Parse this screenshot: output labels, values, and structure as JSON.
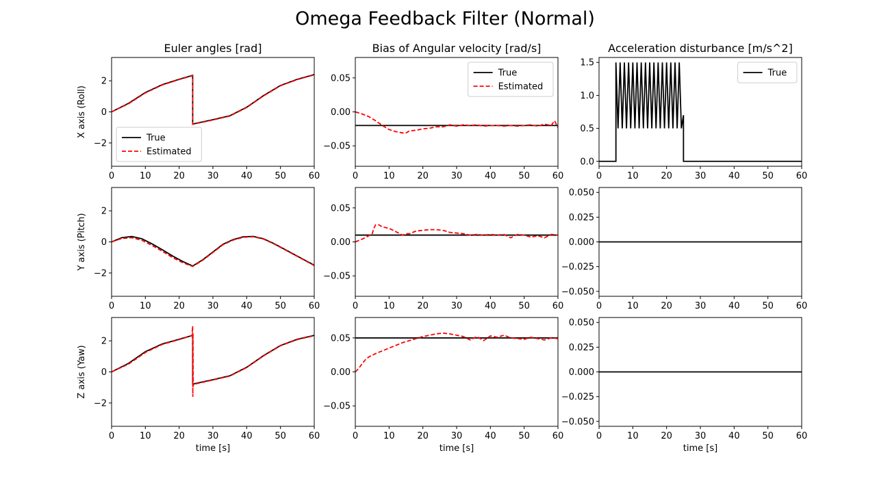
{
  "figure": {
    "title": "Omega Feedback Filter (Normal)"
  },
  "chart_data": [
    {
      "id": "euler-roll",
      "type": "line",
      "row": 0,
      "col": 0,
      "title": "Euler angles [rad]",
      "ylabel": "X axis (Roll)",
      "xlabel": "",
      "xlim": [
        0,
        60
      ],
      "ylim": [
        -3.5,
        3.5
      ],
      "xticks": [
        0,
        10,
        20,
        30,
        40,
        50,
        60
      ],
      "yticks": [
        -2,
        0,
        2
      ],
      "tick_format": "int",
      "legend": {
        "loc": "lower-left",
        "entries": [
          "True",
          "Estimated"
        ]
      },
      "series": [
        {
          "name": "True",
          "color": "#000000",
          "style": "solid",
          "x": [
            0,
            5,
            10,
            15,
            20,
            24,
            24.01,
            30,
            35,
            40,
            45,
            50,
            55,
            60
          ],
          "y": [
            0,
            0.55,
            1.25,
            1.75,
            2.1,
            2.35,
            -0.78,
            -0.5,
            -0.25,
            0.3,
            1.05,
            1.7,
            2.1,
            2.4
          ]
        },
        {
          "name": "Estimated",
          "color": "#ff0000",
          "style": "dashed",
          "x": [
            0,
            5,
            10,
            15,
            20,
            24,
            24.01,
            30,
            35,
            40,
            45,
            50,
            55,
            60
          ],
          "y": [
            0,
            0.52,
            1.22,
            1.73,
            2.08,
            2.33,
            -0.8,
            -0.52,
            -0.27,
            0.28,
            1.03,
            1.68,
            2.08,
            2.38
          ]
        }
      ]
    },
    {
      "id": "bias-x",
      "type": "line",
      "row": 0,
      "col": 1,
      "title": "Bias of Angular velocity [rad/s]",
      "ylabel": "",
      "xlabel": "",
      "xlim": [
        0,
        60
      ],
      "ylim": [
        -0.08,
        0.08
      ],
      "xticks": [
        0,
        10,
        20,
        30,
        40,
        50,
        60
      ],
      "yticks": [
        -0.05,
        0.0,
        0.05
      ],
      "tick_format": "2f",
      "legend": {
        "loc": "top-right",
        "entries": [
          "True",
          "Estimated"
        ]
      },
      "series": [
        {
          "name": "True",
          "color": "#000000",
          "style": "solid",
          "x": [
            0,
            60
          ],
          "y": [
            -0.02,
            -0.02
          ]
        },
        {
          "name": "Estimated",
          "color": "#ff0000",
          "style": "dashed",
          "x": [
            0,
            2,
            4,
            6,
            8,
            10,
            12,
            14,
            15,
            16,
            18,
            20,
            22,
            24,
            26,
            28,
            30,
            32,
            34,
            36,
            38,
            40,
            42,
            44,
            46,
            48,
            50,
            52,
            54,
            56,
            58,
            59,
            60
          ],
          "y": [
            0,
            -0.003,
            -0.007,
            -0.013,
            -0.02,
            -0.026,
            -0.029,
            -0.031,
            -0.031,
            -0.028,
            -0.027,
            -0.025,
            -0.024,
            -0.022,
            -0.022,
            -0.019,
            -0.021,
            -0.019,
            -0.02,
            -0.019,
            -0.021,
            -0.02,
            -0.02,
            -0.021,
            -0.02,
            -0.021,
            -0.02,
            -0.019,
            -0.021,
            -0.018,
            -0.02,
            -0.013,
            -0.023
          ]
        }
      ]
    },
    {
      "id": "accel-x",
      "type": "line",
      "row": 0,
      "col": 2,
      "title": "Acceleration disturbance [m/s^2]",
      "ylabel": "",
      "xlabel": "",
      "xlim": [
        0,
        60
      ],
      "ylim": [
        -0.075,
        1.575
      ],
      "xticks": [
        0,
        10,
        20,
        30,
        40,
        50,
        60
      ],
      "yticks": [
        0.0,
        0.5,
        1.0,
        1.5
      ],
      "tick_format": "1f",
      "legend": {
        "loc": "top-right",
        "entries": [
          "True"
        ]
      },
      "series": [
        {
          "name": "True",
          "color": "#000000",
          "style": "solid",
          "oscillation": {
            "start": 5,
            "end": 25,
            "min": 0.5,
            "max": 1.5,
            "cycles": 16,
            "end_value": 0.7
          },
          "baseline": 0
        }
      ]
    },
    {
      "id": "euler-pitch",
      "type": "line",
      "row": 1,
      "col": 0,
      "title": "",
      "ylabel": "Y axis (Pitch)",
      "xlabel": "",
      "xlim": [
        0,
        60
      ],
      "ylim": [
        -3.5,
        3.5
      ],
      "xticks": [
        0,
        10,
        20,
        30,
        40,
        50,
        60
      ],
      "yticks": [
        -2,
        0,
        2
      ],
      "tick_format": "int",
      "legend": null,
      "series": [
        {
          "name": "True",
          "color": "#000000",
          "style": "solid",
          "x": [
            0,
            3,
            6,
            9,
            12,
            15,
            18,
            21,
            24,
            27,
            30,
            33,
            36,
            39,
            42,
            45,
            48,
            51,
            54,
            57,
            60
          ],
          "y": [
            0,
            0.27,
            0.35,
            0.2,
            -0.13,
            -0.5,
            -0.9,
            -1.25,
            -1.55,
            -1.15,
            -0.65,
            -0.15,
            0.15,
            0.33,
            0.35,
            0.2,
            -0.1,
            -0.45,
            -0.8,
            -1.15,
            -1.5
          ]
        },
        {
          "name": "Estimated",
          "color": "#ff0000",
          "style": "dashed",
          "x": [
            0,
            3,
            6,
            9,
            12,
            15,
            18,
            21,
            24,
            27,
            30,
            33,
            36,
            39,
            42,
            45,
            48,
            51,
            54,
            57,
            60
          ],
          "y": [
            0,
            0.22,
            0.27,
            0.1,
            -0.23,
            -0.6,
            -1.0,
            -1.33,
            -1.58,
            -1.18,
            -0.68,
            -0.18,
            0.12,
            0.3,
            0.33,
            0.18,
            -0.12,
            -0.47,
            -0.82,
            -1.17,
            -1.52
          ]
        }
      ]
    },
    {
      "id": "bias-y",
      "type": "line",
      "row": 1,
      "col": 1,
      "title": "",
      "ylabel": "",
      "xlabel": "",
      "xlim": [
        0,
        60
      ],
      "ylim": [
        -0.08,
        0.08
      ],
      "xticks": [
        0,
        10,
        20,
        30,
        40,
        50,
        60
      ],
      "yticks": [
        -0.05,
        0.0,
        0.05
      ],
      "tick_format": "2f",
      "legend": null,
      "series": [
        {
          "name": "True",
          "color": "#000000",
          "style": "solid",
          "x": [
            0,
            60
          ],
          "y": [
            0.01,
            0.01
          ]
        },
        {
          "name": "Estimated",
          "color": "#ff0000",
          "style": "dashed",
          "x": [
            0,
            2,
            4,
            5,
            5.5,
            6,
            7,
            8,
            10,
            12,
            14,
            15,
            16,
            18,
            20,
            22,
            24,
            26,
            28,
            30,
            32,
            34,
            36,
            38,
            40,
            42,
            44,
            46,
            48,
            50,
            52,
            54,
            56,
            58,
            60
          ],
          "y": [
            0,
            0.004,
            0.009,
            0.012,
            0.02,
            0.025,
            0.025,
            0.022,
            0.02,
            0.015,
            0.01,
            0.012,
            0.012,
            0.016,
            0.017,
            0.018,
            0.018,
            0.017,
            0.014,
            0.013,
            0.012,
            0.01,
            0.011,
            0.01,
            0.011,
            0.01,
            0.011,
            0.006,
            0.011,
            0.01,
            0.007,
            0.009,
            0.006,
            0.011,
            0.01
          ]
        }
      ]
    },
    {
      "id": "accel-y",
      "type": "line",
      "row": 1,
      "col": 2,
      "title": "",
      "ylabel": "",
      "xlabel": "",
      "xlim": [
        0,
        60
      ],
      "ylim": [
        -0.055,
        0.055
      ],
      "xticks": [
        0,
        10,
        20,
        30,
        40,
        50,
        60
      ],
      "yticks": [
        -0.05,
        -0.025,
        0.0,
        0.025,
        0.05
      ],
      "tick_format": "3f",
      "legend": null,
      "series": [
        {
          "name": "True",
          "color": "#000000",
          "style": "solid",
          "x": [
            0,
            60
          ],
          "y": [
            0,
            0
          ]
        }
      ]
    },
    {
      "id": "euler-yaw",
      "type": "line",
      "row": 2,
      "col": 0,
      "title": "",
      "ylabel": "Z axis (Yaw)",
      "xlabel": "time [s]",
      "xlim": [
        0,
        60
      ],
      "ylim": [
        -3.5,
        3.5
      ],
      "xticks": [
        0,
        10,
        20,
        30,
        40,
        50,
        60
      ],
      "yticks": [
        -2,
        0,
        2
      ],
      "tick_format": "int",
      "legend": null,
      "series": [
        {
          "name": "True",
          "color": "#000000",
          "style": "solid",
          "x": [
            0,
            5,
            10,
            15,
            20,
            24,
            24.01,
            30,
            35,
            40,
            45,
            50,
            55,
            60
          ],
          "y": [
            0,
            0.55,
            1.3,
            1.8,
            2.1,
            2.35,
            -0.78,
            -0.5,
            -0.25,
            0.3,
            1.05,
            1.7,
            2.1,
            2.35
          ]
        },
        {
          "name": "Estimated",
          "color": "#ff0000",
          "style": "dashed",
          "x": [
            0,
            5,
            10,
            15,
            20,
            23.8,
            24,
            24.05,
            24.1,
            24.15,
            24.3,
            30,
            35,
            40,
            45,
            50,
            55,
            60
          ],
          "y": [
            0,
            0.5,
            1.25,
            1.77,
            2.08,
            2.33,
            2.95,
            -1.6,
            2.5,
            -0.9,
            -0.8,
            -0.52,
            -0.27,
            0.28,
            1.03,
            1.68,
            2.08,
            2.33
          ]
        }
      ]
    },
    {
      "id": "bias-z",
      "type": "line",
      "row": 2,
      "col": 1,
      "title": "",
      "ylabel": "",
      "xlabel": "time [s]",
      "xlim": [
        0,
        60
      ],
      "ylim": [
        -0.08,
        0.08
      ],
      "xticks": [
        0,
        10,
        20,
        30,
        40,
        50,
        60
      ],
      "yticks": [
        -0.05,
        0.0,
        0.05
      ],
      "tick_format": "2f",
      "legend": null,
      "series": [
        {
          "name": "True",
          "color": "#000000",
          "style": "solid",
          "x": [
            0,
            60
          ],
          "y": [
            0.05,
            0.05
          ]
        },
        {
          "name": "Estimated",
          "color": "#ff0000",
          "style": "dashed",
          "x": [
            0,
            1,
            2,
            3,
            4,
            6,
            8,
            10,
            12,
            14,
            16,
            18,
            20,
            22,
            24,
            26,
            28,
            30,
            32,
            34,
            36,
            38,
            40,
            42,
            44,
            46,
            48,
            50,
            52,
            54,
            56,
            58,
            60
          ],
          "y": [
            0,
            0.005,
            0.012,
            0.018,
            0.022,
            0.027,
            0.031,
            0.035,
            0.039,
            0.043,
            0.046,
            0.049,
            0.052,
            0.054,
            0.056,
            0.057,
            0.056,
            0.054,
            0.052,
            0.047,
            0.052,
            0.046,
            0.053,
            0.051,
            0.054,
            0.05,
            0.049,
            0.048,
            0.051,
            0.049,
            0.047,
            0.05,
            0.049
          ]
        }
      ]
    },
    {
      "id": "accel-z",
      "type": "line",
      "row": 2,
      "col": 2,
      "title": "",
      "ylabel": "",
      "xlabel": "time [s]",
      "xlim": [
        0,
        60
      ],
      "ylim": [
        -0.055,
        0.055
      ],
      "xticks": [
        0,
        10,
        20,
        30,
        40,
        50,
        60
      ],
      "yticks": [
        -0.05,
        -0.025,
        0.0,
        0.025,
        0.05
      ],
      "tick_format": "3f",
      "legend": null,
      "series": [
        {
          "name": "True",
          "color": "#000000",
          "style": "solid",
          "x": [
            0,
            60
          ],
          "y": [
            0,
            0
          ]
        }
      ]
    }
  ]
}
